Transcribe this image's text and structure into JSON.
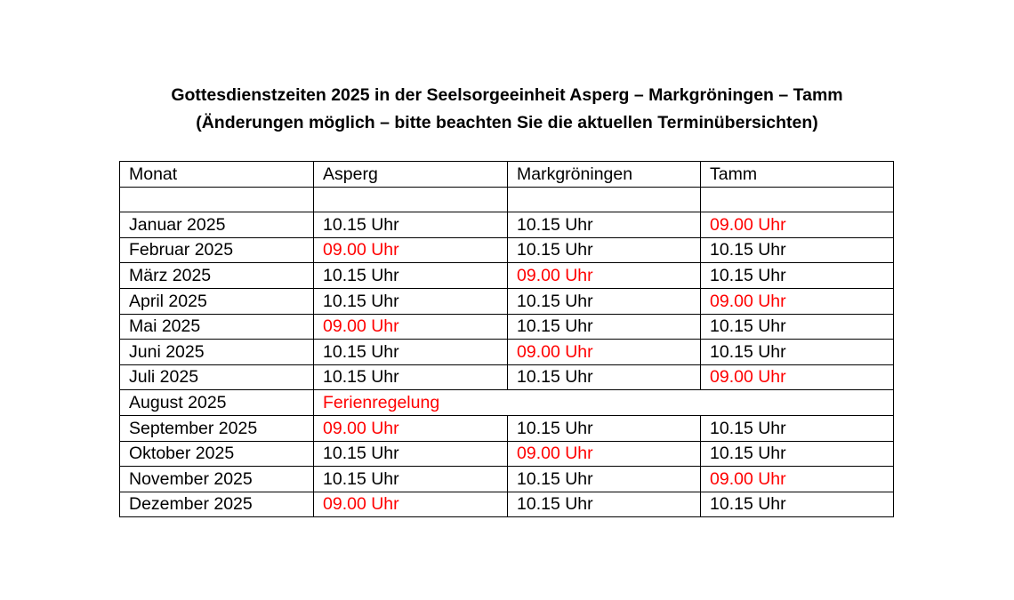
{
  "title": {
    "line1": "Gottesdienstzeiten 2025 in der Seelsorgeeinheit Asperg – Markgröningen – Tamm",
    "line2": "(Änderungen möglich – bitte beachten Sie die aktuellen Terminübersichten)"
  },
  "colors": {
    "highlight": "#ff0000",
    "text": "#000000"
  },
  "table": {
    "headers": [
      "Monat",
      "Asperg",
      "Markgröningen",
      "Tamm"
    ],
    "rows": [
      {
        "month": "Januar 2025",
        "cells": [
          "10.15 Uhr",
          "10.15 Uhr",
          "09.00 Uhr"
        ]
      },
      {
        "month": "Februar 2025",
        "cells": [
          "09.00 Uhr",
          "10.15 Uhr",
          "10.15 Uhr"
        ]
      },
      {
        "month": "März 2025",
        "cells": [
          "10.15 Uhr",
          "09.00 Uhr",
          "10.15 Uhr"
        ]
      },
      {
        "month": "April 2025",
        "cells": [
          "10.15 Uhr",
          "10.15 Uhr",
          "09.00 Uhr"
        ]
      },
      {
        "month": "Mai 2025",
        "cells": [
          "09.00 Uhr",
          "10.15 Uhr",
          "10.15 Uhr"
        ]
      },
      {
        "month": "Juni 2025",
        "cells": [
          "10.15 Uhr",
          "09.00 Uhr",
          "10.15 Uhr"
        ]
      },
      {
        "month": "Juli 2025",
        "cells": [
          "10.15 Uhr",
          "10.15 Uhr",
          "09.00 Uhr"
        ]
      },
      {
        "month": "August 2025",
        "merged": "Ferienregelung"
      },
      {
        "month": "September 2025",
        "cells": [
          "09.00 Uhr",
          "10.15 Uhr",
          "10.15 Uhr"
        ]
      },
      {
        "month": "Oktober 2025",
        "cells": [
          "10.15 Uhr",
          "09.00 Uhr",
          "10.15 Uhr"
        ]
      },
      {
        "month": "November 2025",
        "cells": [
          "10.15 Uhr",
          "10.15 Uhr",
          "09.00 Uhr"
        ]
      },
      {
        "month": "Dezember 2025",
        "cells": [
          "09.00 Uhr",
          "10.15 Uhr",
          "10.15 Uhr"
        ]
      }
    ]
  }
}
